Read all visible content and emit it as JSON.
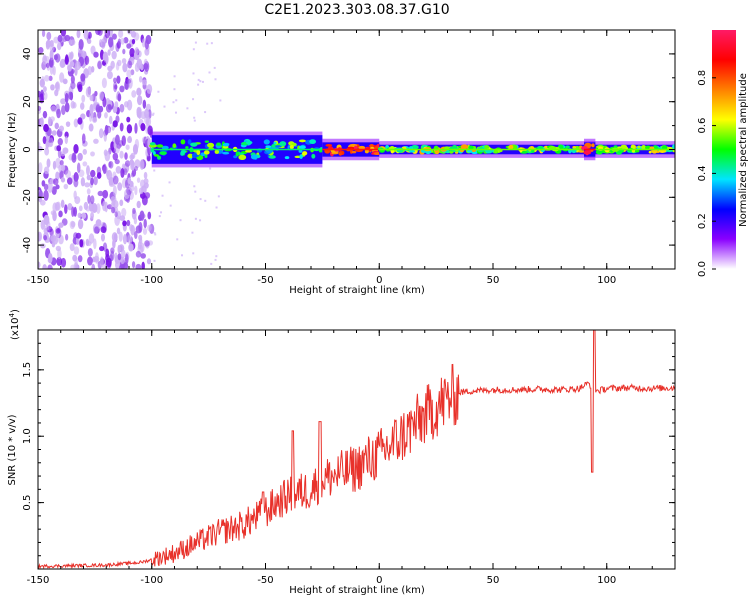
{
  "title": "C2E1.2023.303.08.37.G10",
  "chart_data": [
    {
      "type": "heatmap",
      "xlabel": "Height of straight line (km)",
      "ylabel": "Frequency (Hz)",
      "xlim": [
        -150,
        130
      ],
      "ylim": [
        -50,
        50
      ],
      "xticks": [
        -150,
        -100,
        -50,
        0,
        50,
        100
      ],
      "yticks": [
        -40,
        -20,
        0,
        20,
        40
      ],
      "colorbar": {
        "label": "Normalized spectral amplitude",
        "range": [
          0,
          1
        ],
        "ticks": [
          0.0,
          0.2,
          0.4,
          0.6,
          0.8
        ],
        "tick_labels": [
          "0.0",
          "0.2",
          "0.4",
          "0.6",
          "0.8"
        ],
        "colormap": [
          "#ffffff",
          "#8a00ff",
          "#0000ff",
          "#00e5ff",
          "#00ff00",
          "#ffff00",
          "#ff8000",
          "#ff0000",
          "#ff1a66"
        ]
      },
      "regions": [
        {
          "x": [
            -150,
            -100
          ],
          "freq_spread": 50,
          "amplitude": 0.1,
          "description": "noise"
        },
        {
          "x": [
            -100,
            -25
          ],
          "freq_spread": 6,
          "amplitude": 0.45
        },
        {
          "x": [
            -25,
            0
          ],
          "freq_spread": 3,
          "amplitude": 0.85
        },
        {
          "x": [
            0,
            130
          ],
          "freq_spread": 2,
          "amplitude": 0.55
        },
        {
          "x": [
            90,
            95
          ],
          "freq_spread": 3,
          "amplitude": 0.9
        }
      ]
    },
    {
      "type": "line",
      "xlabel": "Height of straight line (km)",
      "ylabel": "SNR (10 * v/v)",
      "y_multiplier": "(x10^4)",
      "xlim": [
        -150,
        130
      ],
      "ylim": [
        0,
        18000
      ],
      "xticks": [
        -150,
        -100,
        -50,
        0,
        50,
        100
      ],
      "yticks": [
        5000,
        10000,
        15000
      ],
      "ytick_labels": [
        "0.5",
        "1.0",
        "1.5"
      ],
      "color": "#e8312a",
      "series": [
        {
          "x": [
            -150,
            -120,
            -105,
            -100,
            -90,
            -80,
            -70,
            -60,
            -50,
            -45,
            -40,
            -30,
            -25,
            -20,
            -15,
            -10,
            -5,
            0,
            5,
            10,
            20,
            30,
            35,
            40,
            50,
            60,
            70,
            80,
            88,
            92,
            94,
            96,
            100,
            110,
            120,
            130
          ],
          "y": [
            200,
            300,
            500,
            700,
            1200,
            2000,
            2800,
            3300,
            4300,
            5000,
            5500,
            6000,
            6800,
            7000,
            7300,
            7600,
            8200,
            8600,
            9300,
            10000,
            11500,
            12800,
            13300,
            13400,
            13500,
            13500,
            13550,
            13500,
            13600,
            14000,
            13600,
            13400,
            13600,
            13650,
            13600,
            13650
          ]
        }
      ],
      "spikes": [
        {
          "x": -51,
          "y": 5800
        },
        {
          "x": -38,
          "y": 10400
        },
        {
          "x": -26,
          "y": 11100
        },
        {
          "x": 93.5,
          "y": 7300
        },
        {
          "x": 94.5,
          "y": 18000
        }
      ]
    }
  ]
}
